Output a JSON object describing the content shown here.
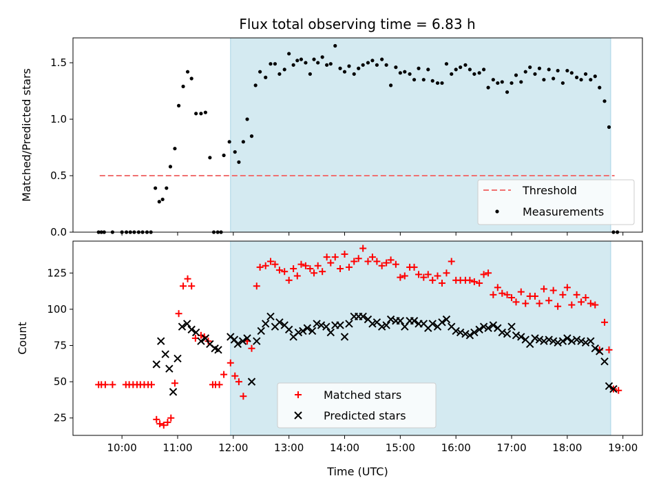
{
  "figure_title": "Flux total observing time = 6.83 h",
  "colors": {
    "shade": "#d4eaf1",
    "shade_edge": "#a8d4e4",
    "threshold": "#f07070",
    "measurements": "#000000",
    "matched": "#ff0000",
    "predicted": "#000000"
  },
  "chart_data": [
    {
      "type": "scatter",
      "panel": "top",
      "xlabel": "",
      "ylabel": "Matched/Predicted stars",
      "xlim": [
        9.12,
        19.35
      ],
      "ylim": [
        0,
        1.72
      ],
      "x_ticks": [
        10,
        11,
        12,
        13,
        14,
        15,
        16,
        17,
        18,
        19
      ],
      "x_tick_labels": [
        "",
        "",
        "",
        "",
        "",
        "",
        "",
        "",
        "",
        ""
      ],
      "y_ticks": [
        0.0,
        0.5,
        1.0,
        1.5
      ],
      "y_tick_labels": [
        "0.0",
        "0.5",
        "1.0",
        "1.5"
      ],
      "shaded_interval": [
        11.95,
        18.78
      ],
      "legend_position": "lower-right",
      "threshold": {
        "name": "Threshold",
        "value": 0.5,
        "x": [
          9.6,
          18.85
        ]
      },
      "series": [
        {
          "name": "Measurements",
          "marker": "dot",
          "x": [
            9.58,
            9.63,
            9.68,
            9.83,
            10.0,
            10.08,
            10.15,
            10.22,
            10.3,
            10.37,
            10.45,
            10.52,
            10.6,
            10.67,
            10.73,
            10.8,
            10.87,
            10.95,
            11.02,
            11.1,
            11.18,
            11.25,
            11.33,
            11.42,
            11.5,
            11.58,
            11.65,
            11.72,
            11.78,
            11.83,
            11.93,
            12.03,
            12.1,
            12.18,
            12.25,
            12.33,
            12.4,
            12.48,
            12.58,
            12.67,
            12.75,
            12.83,
            12.92,
            13.0,
            13.08,
            13.15,
            13.22,
            13.3,
            13.38,
            13.45,
            13.52,
            13.6,
            13.68,
            13.75,
            13.83,
            13.92,
            14.0,
            14.08,
            14.17,
            14.25,
            14.33,
            14.42,
            14.5,
            14.58,
            14.67,
            14.75,
            14.83,
            14.92,
            15.0,
            15.08,
            15.17,
            15.25,
            15.33,
            15.42,
            15.5,
            15.58,
            15.67,
            15.75,
            15.83,
            15.92,
            16.0,
            16.08,
            16.17,
            16.25,
            16.33,
            16.42,
            16.5,
            16.58,
            16.67,
            16.75,
            16.83,
            16.92,
            17.0,
            17.08,
            17.17,
            17.25,
            17.33,
            17.42,
            17.5,
            17.58,
            17.67,
            17.75,
            17.83,
            17.92,
            18.0,
            18.08,
            18.17,
            18.25,
            18.33,
            18.42,
            18.5,
            18.58,
            18.67,
            18.75,
            18.83,
            18.9
          ],
          "y": [
            0.0,
            0.0,
            0.0,
            0.0,
            0.0,
            0.0,
            0.0,
            0.0,
            0.0,
            0.0,
            0.0,
            0.0,
            0.39,
            0.27,
            0.29,
            0.39,
            0.58,
            0.74,
            1.12,
            1.29,
            1.42,
            1.36,
            1.05,
            1.05,
            1.06,
            0.66,
            0.0,
            0.0,
            0.0,
            0.68,
            0.8,
            0.71,
            0.62,
            0.8,
            1.0,
            0.85,
            1.3,
            1.42,
            1.37,
            1.49,
            1.49,
            1.4,
            1.44,
            1.58,
            1.48,
            1.52,
            1.53,
            1.5,
            1.4,
            1.53,
            1.5,
            1.55,
            1.48,
            1.49,
            1.65,
            1.45,
            1.42,
            1.47,
            1.4,
            1.45,
            1.48,
            1.5,
            1.52,
            1.48,
            1.53,
            1.48,
            1.3,
            1.46,
            1.41,
            1.42,
            1.4,
            1.35,
            1.45,
            1.35,
            1.44,
            1.34,
            1.32,
            1.32,
            1.49,
            1.4,
            1.44,
            1.46,
            1.48,
            1.44,
            1.4,
            1.41,
            1.44,
            1.28,
            1.35,
            1.32,
            1.33,
            1.24,
            1.32,
            1.39,
            1.33,
            1.42,
            1.46,
            1.4,
            1.45,
            1.35,
            1.44,
            1.36,
            1.43,
            1.32,
            1.43,
            1.41,
            1.37,
            1.35,
            1.4,
            1.35,
            1.38,
            1.28,
            1.16,
            0.93,
            0.0,
            0.0
          ]
        }
      ]
    },
    {
      "type": "scatter",
      "panel": "bottom",
      "xlabel": "Time (UTC)",
      "ylabel": "Count",
      "xlim": [
        9.12,
        19.35
      ],
      "ylim": [
        13,
        147
      ],
      "x_ticks": [
        10,
        11,
        12,
        13,
        14,
        15,
        16,
        17,
        18,
        19
      ],
      "x_tick_labels": [
        "10:00",
        "11:00",
        "12:00",
        "13:00",
        "14:00",
        "15:00",
        "16:00",
        "17:00",
        "18:00",
        "19:00"
      ],
      "y_ticks": [
        25,
        50,
        75,
        100,
        125
      ],
      "y_tick_labels": [
        "25",
        "50",
        "75",
        "100",
        "125"
      ],
      "shaded_interval": [
        11.95,
        18.78
      ],
      "legend_position": "lower-center",
      "series": [
        {
          "name": "Matched stars",
          "marker": "plus",
          "x": [
            9.58,
            9.63,
            9.7,
            9.83,
            10.07,
            10.13,
            10.2,
            10.27,
            10.33,
            10.4,
            10.47,
            10.53,
            10.62,
            10.68,
            10.75,
            10.82,
            10.88,
            10.95,
            11.02,
            11.1,
            11.18,
            11.25,
            11.32,
            11.42,
            11.48,
            11.55,
            11.63,
            11.68,
            11.75,
            11.83,
            11.95,
            12.03,
            12.1,
            12.18,
            12.25,
            12.33,
            12.42,
            12.48,
            12.58,
            12.67,
            12.75,
            12.83,
            12.92,
            13.0,
            13.08,
            13.15,
            13.22,
            13.3,
            13.38,
            13.45,
            13.52,
            13.6,
            13.68,
            13.75,
            13.83,
            13.92,
            14.0,
            14.08,
            14.17,
            14.25,
            14.33,
            14.42,
            14.5,
            14.58,
            14.67,
            14.75,
            14.83,
            14.92,
            15.0,
            15.08,
            15.17,
            15.25,
            15.33,
            15.42,
            15.5,
            15.58,
            15.67,
            15.75,
            15.83,
            15.92,
            16.0,
            16.08,
            16.17,
            16.25,
            16.33,
            16.42,
            16.5,
            16.58,
            16.67,
            16.75,
            16.83,
            16.92,
            17.0,
            17.08,
            17.17,
            17.25,
            17.33,
            17.42,
            17.5,
            17.58,
            17.67,
            17.75,
            17.83,
            17.92,
            18.0,
            18.08,
            18.17,
            18.25,
            18.33,
            18.42,
            18.5,
            18.58,
            18.67,
            18.75,
            18.83,
            18.92
          ],
          "y": [
            48,
            48,
            48,
            48,
            48,
            48,
            48,
            48,
            48,
            48,
            48,
            48,
            24,
            21,
            20,
            22,
            25,
            49,
            97,
            116,
            121,
            116,
            80,
            82,
            81,
            78,
            48,
            48,
            48,
            55,
            63,
            54,
            50,
            40,
            78,
            73,
            116,
            129,
            130,
            133,
            131,
            127,
            126,
            120,
            128,
            123,
            131,
            130,
            128,
            125,
            130,
            126,
            136,
            132,
            136,
            128,
            138,
            129,
            133,
            135,
            142,
            133,
            136,
            133,
            130,
            132,
            134,
            131,
            122,
            123,
            129,
            129,
            124,
            122,
            124,
            120,
            123,
            118,
            125,
            133,
            120,
            120,
            120,
            120,
            119,
            118,
            124,
            125,
            110,
            115,
            111,
            110,
            108,
            105,
            112,
            104,
            109,
            109,
            104,
            114,
            106,
            113,
            102,
            110,
            115,
            103,
            110,
            105,
            108,
            104,
            103,
            72,
            91,
            72,
            45,
            44
          ]
        },
        {
          "name": "Predicted stars",
          "marker": "x",
          "x": [
            10.62,
            10.7,
            10.78,
            10.85,
            10.92,
            11.0,
            11.08,
            11.17,
            11.25,
            11.33,
            11.42,
            11.5,
            11.58,
            11.67,
            11.73,
            11.95,
            12.02,
            12.08,
            12.17,
            12.25,
            12.33,
            12.42,
            12.5,
            12.58,
            12.67,
            12.75,
            12.83,
            12.92,
            13.0,
            13.08,
            13.17,
            13.25,
            13.33,
            13.42,
            13.5,
            13.58,
            13.67,
            13.75,
            13.83,
            13.92,
            14.0,
            14.08,
            14.17,
            14.25,
            14.33,
            14.42,
            14.5,
            14.58,
            14.67,
            14.75,
            14.83,
            14.92,
            15.0,
            15.08,
            15.17,
            15.25,
            15.33,
            15.42,
            15.5,
            15.58,
            15.67,
            15.75,
            15.83,
            15.92,
            16.0,
            16.08,
            16.17,
            16.25,
            16.33,
            16.42,
            16.5,
            16.58,
            16.67,
            16.75,
            16.83,
            16.92,
            17.0,
            17.08,
            17.17,
            17.25,
            17.33,
            17.42,
            17.5,
            17.58,
            17.67,
            17.75,
            17.83,
            17.92,
            18.0,
            18.08,
            18.17,
            18.25,
            18.33,
            18.42,
            18.5,
            18.58,
            18.67,
            18.75,
            18.83
          ],
          "y": [
            62,
            78,
            69,
            59,
            43,
            66,
            88,
            90,
            86,
            84,
            78,
            80,
            76,
            73,
            72,
            81,
            79,
            76,
            78,
            80,
            50,
            78,
            85,
            90,
            95,
            88,
            91,
            89,
            86,
            81,
            84,
            85,
            87,
            85,
            90,
            89,
            88,
            84,
            89,
            89,
            81,
            90,
            95,
            95,
            95,
            93,
            90,
            91,
            88,
            89,
            93,
            92,
            92,
            88,
            92,
            92,
            90,
            90,
            87,
            90,
            88,
            91,
            93,
            88,
            85,
            84,
            83,
            82,
            84,
            86,
            88,
            87,
            89,
            87,
            84,
            83,
            88,
            82,
            81,
            79,
            76,
            80,
            79,
            78,
            79,
            78,
            77,
            78,
            80,
            78,
            79,
            78,
            77,
            78,
            73,
            71,
            64,
            47,
            45
          ]
        }
      ]
    }
  ]
}
